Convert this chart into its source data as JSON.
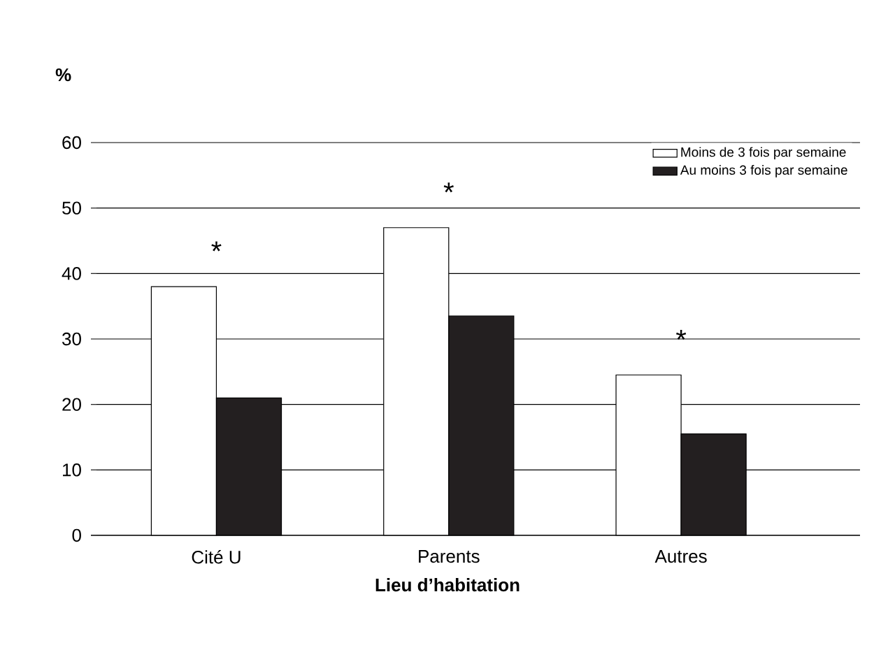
{
  "chart_data": {
    "type": "bar",
    "xlabel": "Lieu d’habitation",
    "ylabel": "%",
    "categories": [
      "Cité U",
      "Parents",
      "Autres"
    ],
    "series": [
      {
        "name": "Moins de 3 fois par semaine",
        "color": "#ffffff",
        "values": [
          38,
          47,
          24.5
        ]
      },
      {
        "name": "Au moins 3 fois par semaine",
        "color": "#231f20",
        "values": [
          21,
          33.5,
          15.5
        ]
      }
    ],
    "ylim": [
      0,
      60
    ],
    "yticks": [
      0,
      10,
      20,
      30,
      40,
      50,
      60
    ],
    "grid": "y",
    "legend": "top right",
    "annotations": [
      "*",
      "*",
      "*"
    ]
  }
}
